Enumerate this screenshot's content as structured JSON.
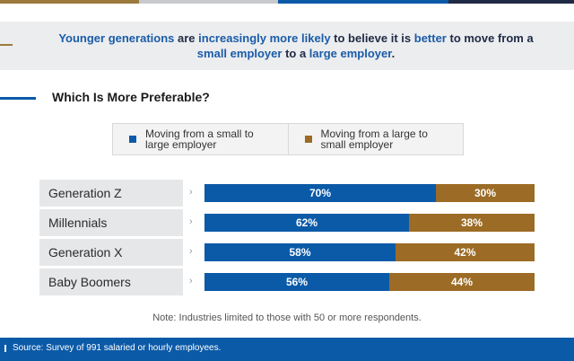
{
  "colors": {
    "small_to_large": "#0b5aa8",
    "large_to_small": "#9c6b25",
    "strip_gold": "#9c7a3d",
    "strip_navy": "#1f2a44",
    "strip_blue": "#0b5aa8",
    "strip_light": "#c7c9cc"
  },
  "headline": {
    "p1": "Younger generations",
    "p2": " are ",
    "p3": "increasingly more likely",
    "p4": " to believe it is ",
    "p5": "better",
    "p6": " to move from a ",
    "p7": "small employer",
    "p8": " to a ",
    "p9": "large employer",
    "p10": "."
  },
  "section_title": "Which Is More Preferable?",
  "chevron": "›",
  "note": "Note: Industries limited to those with 50 or more respondents.",
  "footer": {
    "source": "Source: Survey of 991 salaried or hourly employees."
  },
  "chart_data": {
    "type": "bar",
    "orientation": "horizontal",
    "stacked": true,
    "title": "Which Is More Preferable?",
    "categories": [
      "Generation Z",
      "Millennials",
      "Generation X",
      "Baby Boomers"
    ],
    "series": [
      {
        "name": "Moving from a small to large employer",
        "values": [
          70,
          62,
          58,
          56
        ],
        "labels": [
          "70%",
          "62%",
          "58%",
          "56%"
        ]
      },
      {
        "name": "Moving from a large to small employer",
        "values": [
          30,
          38,
          42,
          44
        ],
        "labels": [
          "30%",
          "38%",
          "42%",
          "44%"
        ]
      }
    ],
    "xlim": [
      0,
      100
    ],
    "legend_position": "top",
    "grid": false
  }
}
